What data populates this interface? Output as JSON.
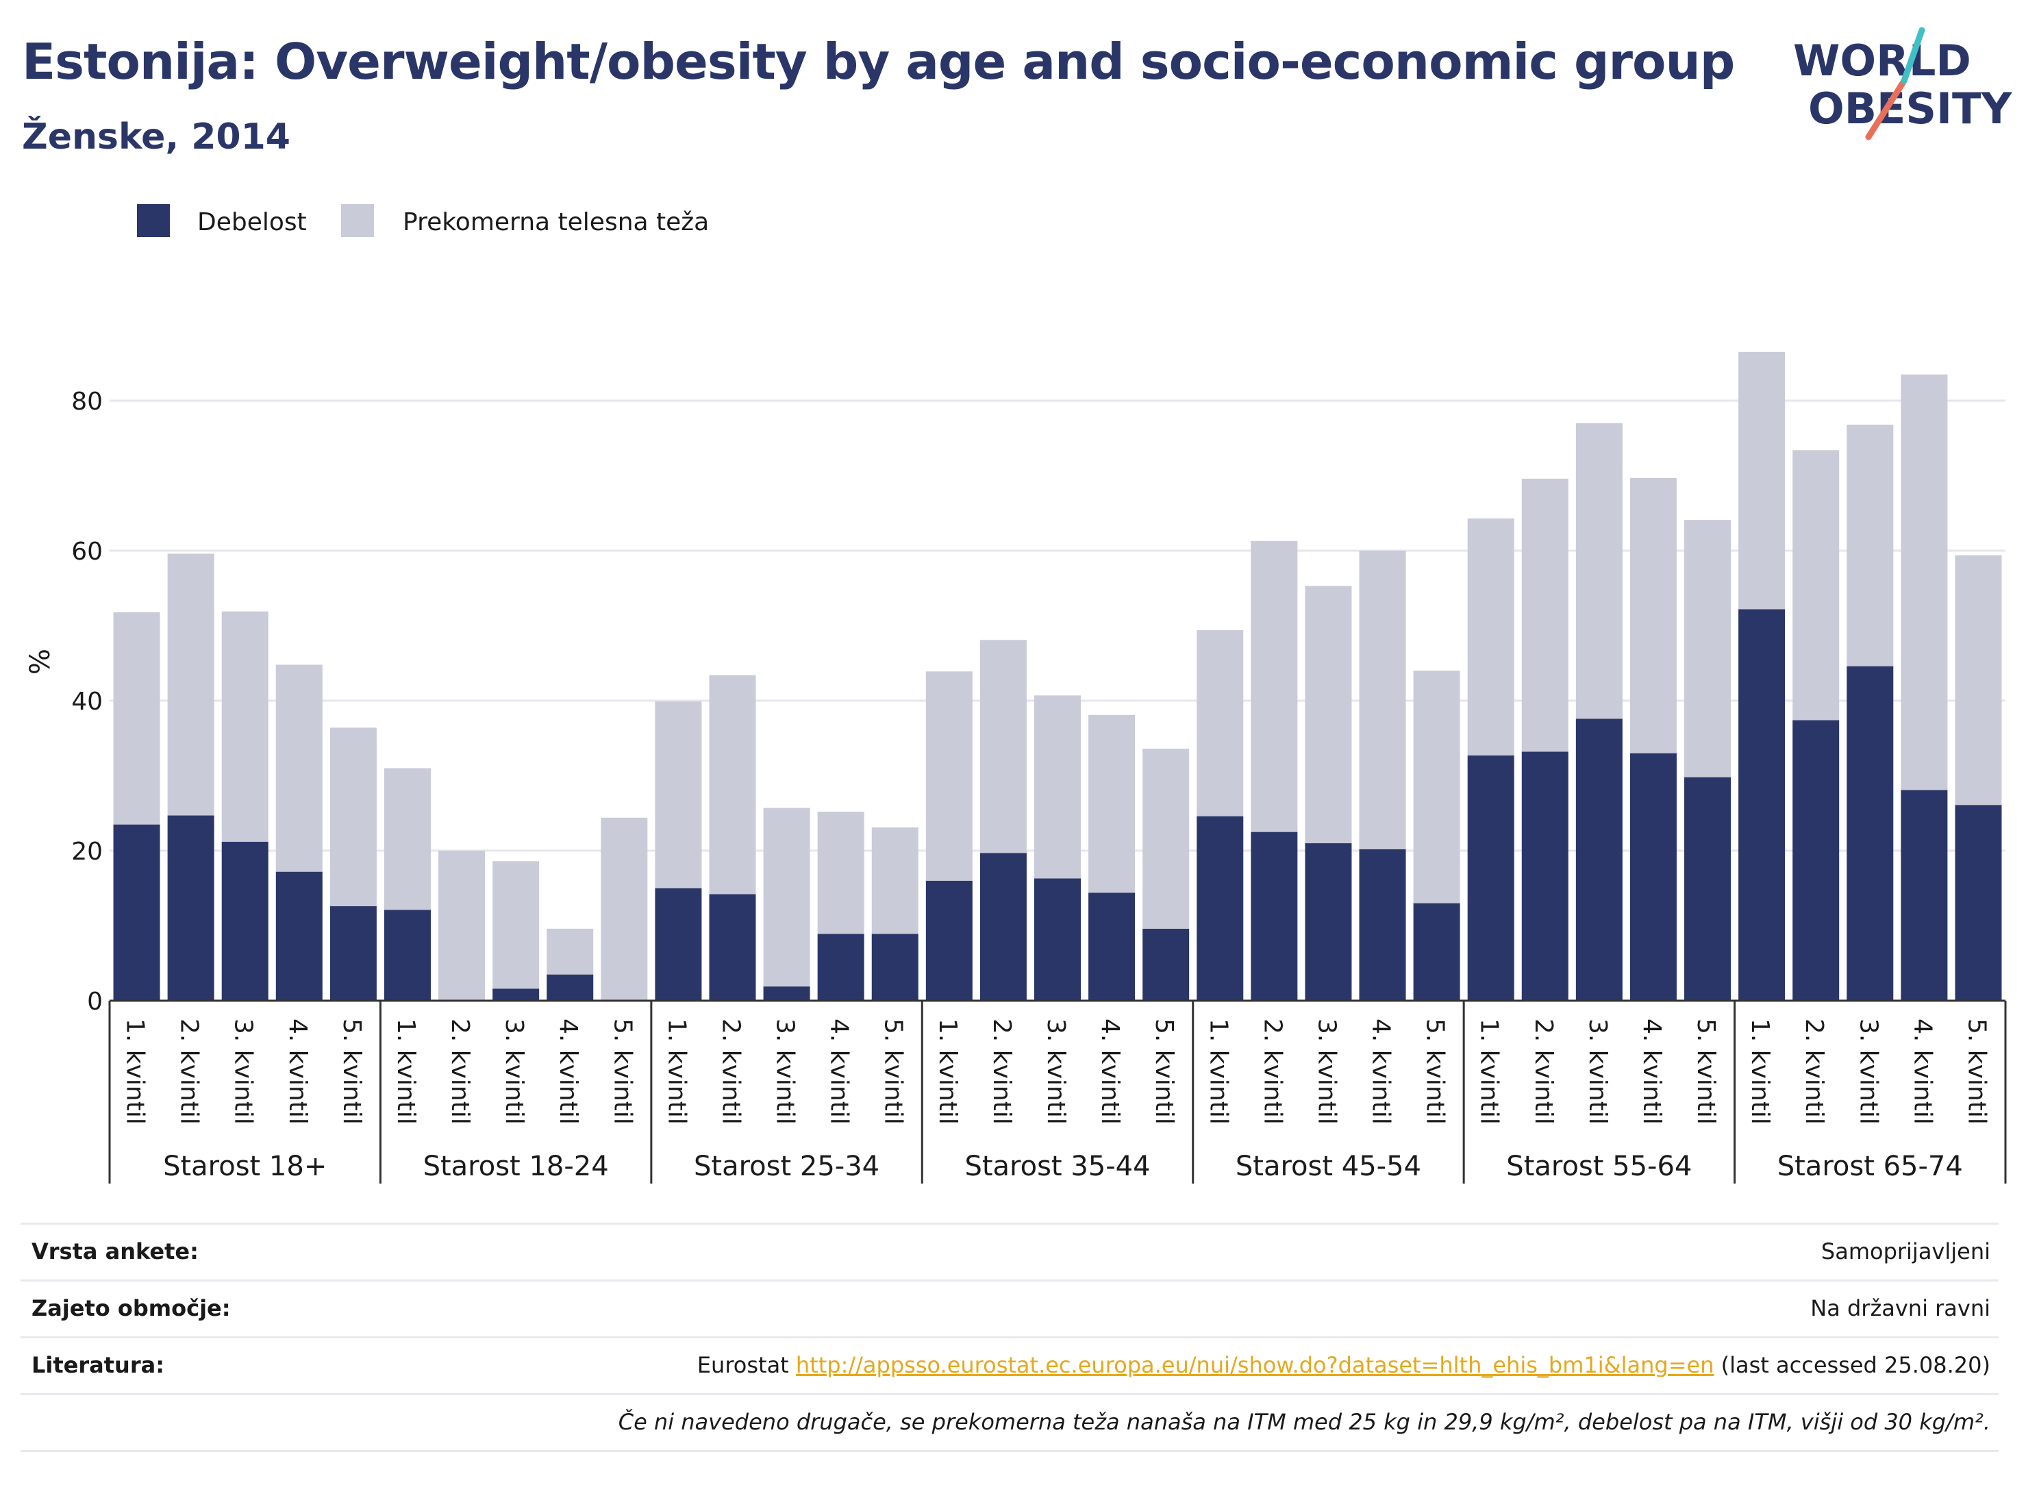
{
  "title": "Estonija: Overweight/obesity by age and socio-economic group",
  "subtitle": "Ženske, 2014",
  "logo": {
    "line1": "WORLD",
    "line2": "OBESITY"
  },
  "colors": {
    "obesity": "#2b3668",
    "overweight": "#c9cbd8",
    "title": "#2b3668",
    "link": "#e6a81b"
  },
  "chart_data": {
    "type": "bar",
    "stacked": true,
    "ylabel": "%",
    "ylim": [
      0,
      90
    ],
    "yticks": [
      0,
      20,
      40,
      60,
      80
    ],
    "grid": true,
    "legend_position": "top-left",
    "groups": [
      "Starost 18+",
      "Starost 18-24",
      "Starost 25-34",
      "Starost 35-44",
      "Starost 45-54",
      "Starost 55-64",
      "Starost 65-74"
    ],
    "categories": [
      "1. kvintil",
      "2. kvintil",
      "3. kvintil",
      "4. kvintil",
      "5. kvintil"
    ],
    "series": [
      {
        "name": "Debelost",
        "values": [
          [
            23.5,
            24.7,
            21.2,
            17.2,
            12.6
          ],
          [
            12.1,
            0,
            1.6,
            3.5,
            0
          ],
          [
            15.0,
            14.2,
            1.9,
            8.9,
            8.9
          ],
          [
            16.0,
            19.7,
            16.3,
            14.4,
            9.6
          ],
          [
            24.6,
            22.5,
            21.0,
            20.2,
            13.0
          ],
          [
            32.7,
            33.2,
            37.6,
            33.0,
            29.8
          ],
          [
            52.2,
            37.4,
            44.6,
            28.1,
            26.1
          ]
        ]
      },
      {
        "name": "Prekomerna telesna teža",
        "values": [
          [
            28.3,
            34.9,
            30.7,
            27.6,
            23.8
          ],
          [
            18.9,
            20.0,
            17.0,
            6.1,
            24.4
          ],
          [
            24.9,
            29.2,
            23.8,
            16.3,
            14.2
          ],
          [
            27.9,
            28.4,
            24.4,
            23.7,
            24.0
          ],
          [
            24.8,
            38.8,
            34.3,
            39.8,
            31.0
          ],
          [
            31.6,
            36.4,
            39.4,
            36.7,
            34.3
          ],
          [
            34.3,
            36.0,
            32.2,
            55.4,
            33.3
          ]
        ]
      }
    ]
  },
  "info": {
    "survey_label": "Vrsta ankete:",
    "survey_value": "Samoprijavljeni",
    "coverage_label": "Zajeto območje:",
    "coverage_value": "Na državni ravni",
    "ref_label": "Literatura:",
    "ref_prefix": "Eurostat ",
    "ref_link": "http://appsso.eurostat.ec.europa.eu/nui/show.do?dataset=hlth_ehis_bm1i&lang=en",
    "ref_suffix": " (last accessed 25.08.20)",
    "note": "Če ni navedeno drugače, se prekomerna teža nanaša na ITM med 25 kg in 29,9 kg/m², debelost pa na ITM, višji od 30 kg/m²."
  }
}
